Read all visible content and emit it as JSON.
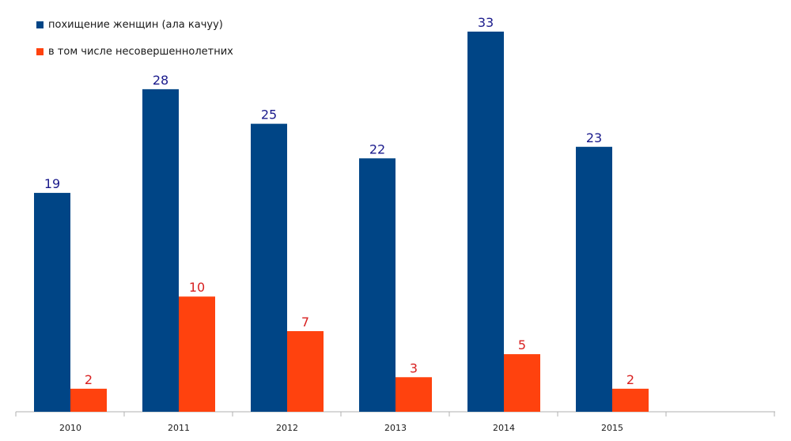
{
  "chart_data": {
    "type": "bar",
    "categories": [
      "2010",
      "2011",
      "2012",
      "2013",
      "2014",
      "2015"
    ],
    "series": [
      {
        "name": "похищение женщин (ала качуу)",
        "values": [
          19,
          28,
          25,
          22,
          33,
          23
        ],
        "color": "#004586"
      },
      {
        "name": "в том числе несовершеннолетних",
        "values": [
          2,
          10,
          7,
          3,
          5,
          2
        ],
        "color": "#ff420e"
      }
    ],
    "data_labels": true,
    "label_colors": [
      "#1a1a8c",
      "#d82020"
    ],
    "ylim": [
      0,
      35
    ],
    "grid": false,
    "legend_position": "top-left",
    "title": "",
    "xlabel": "",
    "ylabel": ""
  }
}
